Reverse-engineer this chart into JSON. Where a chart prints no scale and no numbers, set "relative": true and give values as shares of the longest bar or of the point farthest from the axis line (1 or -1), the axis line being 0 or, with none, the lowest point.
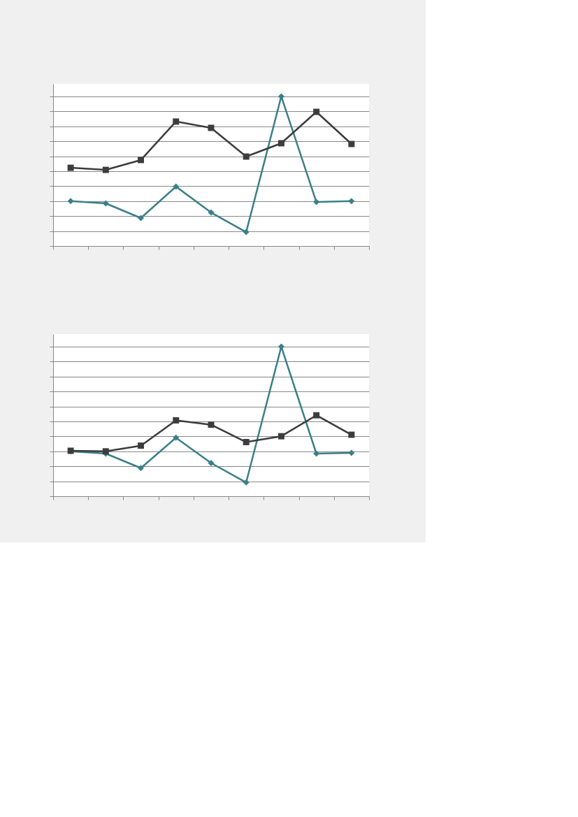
{
  "chart_data": [
    {
      "type": "line",
      "relative": true,
      "categories": [
        null,
        null,
        null,
        null,
        null,
        null,
        null,
        null,
        null
      ],
      "grid": "y",
      "tick_labels": false,
      "line_style": "solid",
      "series": [
        {
          "color": "#3a7f8a",
          "marker": "diamond",
          "values": [
            0.3,
            0.285,
            0.187,
            0.397,
            0.224,
            0.093,
            1,
            0.294,
            0.3
          ]
        },
        {
          "color": "#3c3c3c",
          "marker": "square",
          "values": [
            0.523,
            0.509,
            0.575,
            0.832,
            0.79,
            0.598,
            0.687,
            0.897,
            0.682
          ]
        }
      ]
    },
    {
      "type": "line",
      "relative": true,
      "categories": [
        null,
        null,
        null,
        null,
        null,
        null,
        null,
        null,
        null
      ],
      "grid": "y",
      "tick_labels": false,
      "line_style": "solid",
      "series": [
        {
          "color": "#3a7f8a",
          "marker": "diamond",
          "values": [
            0.3,
            0.285,
            0.188,
            0.391,
            0.222,
            0.092,
            1,
            0.285,
            0.29
          ]
        },
        {
          "color": "#3c3c3c",
          "marker": "square",
          "values": [
            0.304,
            0.3,
            0.338,
            0.507,
            0.478,
            0.362,
            0.401,
            0.541,
            0.411
          ]
        }
      ]
    }
  ]
}
